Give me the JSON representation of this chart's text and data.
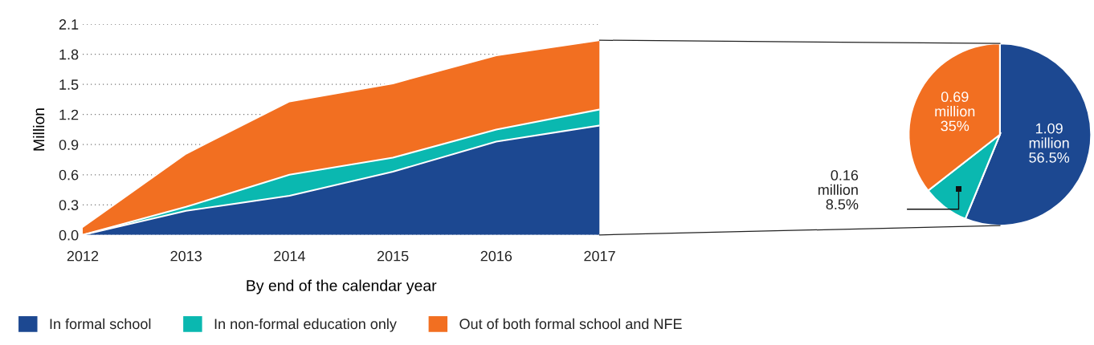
{
  "chart_data": [
    {
      "type": "area",
      "stacked": true,
      "x": [
        2012,
        2013,
        2014,
        2015,
        2016,
        2017
      ],
      "xlim": [
        2012,
        2017
      ],
      "xticks": [
        2012,
        2013,
        2014,
        2015,
        2016,
        2017
      ],
      "ylim": [
        0,
        2.1
      ],
      "yticks": [
        {
          "value": 0,
          "label": "0.0"
        },
        {
          "value": 0.3,
          "label": "0.3"
        },
        {
          "value": 0.6,
          "label": "0.6"
        },
        {
          "value": 0.9,
          "label": "0.9"
        },
        {
          "value": 1.2,
          "label": "1.2"
        },
        {
          "value": 1.5,
          "label": "1.5"
        },
        {
          "value": 1.8,
          "label": "1.8"
        },
        {
          "value": 2.1,
          "label": "2.1"
        }
      ],
      "xlabel": "By end of the calendar year",
      "ylabel": "Million",
      "grid": "y",
      "legend": "bottom",
      "series": [
        {
          "name": "In formal school",
          "color": "#1c4891",
          "values": [
            0,
            0.24,
            0.39,
            0.63,
            0.93,
            1.09
          ]
        },
        {
          "name": "In non-formal education only",
          "color": "#0ab8b0",
          "values": [
            0,
            0.04,
            0.21,
            0.14,
            0.12,
            0.16
          ]
        },
        {
          "name": "Out of both formal school and NFE",
          "color": "#f26f21",
          "values": [
            0.08,
            0.53,
            0.73,
            0.74,
            0.74,
            0.69
          ]
        }
      ]
    },
    {
      "type": "pie",
      "categories": [
        null,
        null,
        null
      ],
      "values": [
        1.09,
        0.16,
        0.69
      ],
      "colors": [
        "#1c4891",
        "#0ab8b0",
        "#f26f21"
      ],
      "value_labels": [
        "1.09\nmillion\n56.5%",
        "0.16\nmillion\n8.5%",
        "0.69\nmillion\n35%"
      ]
    }
  ]
}
